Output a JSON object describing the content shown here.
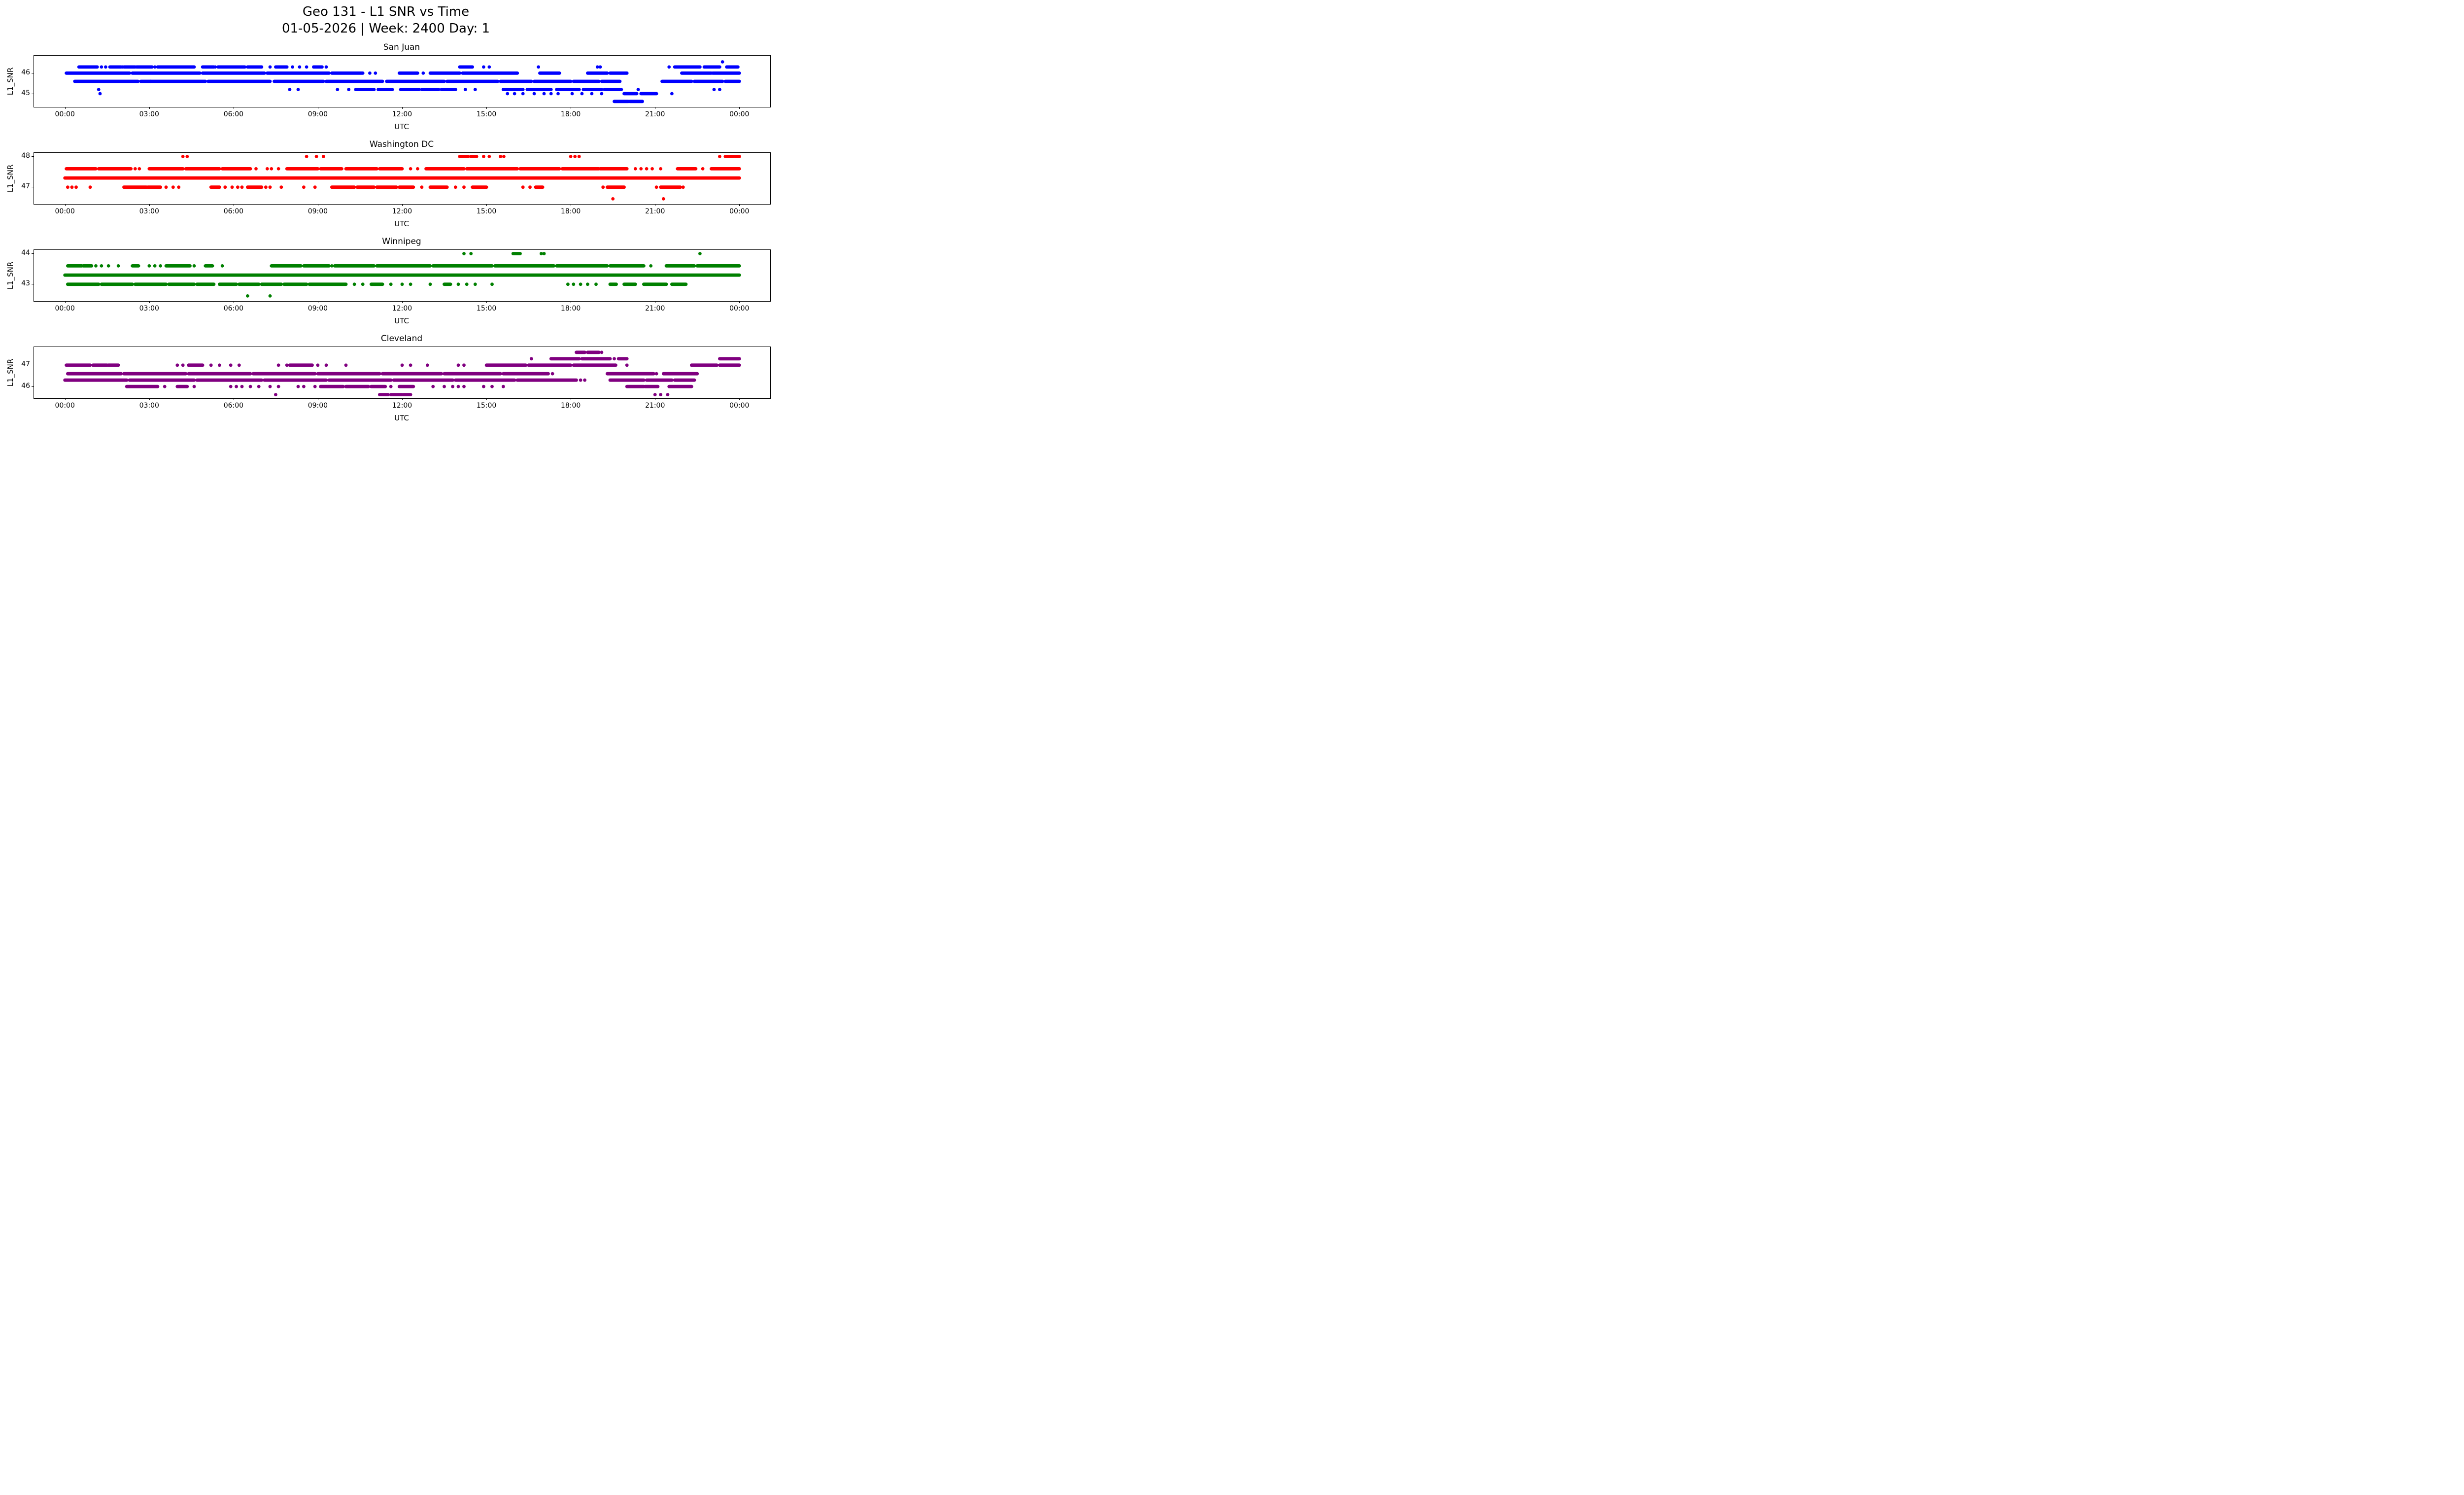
{
  "figure": {
    "title": "Geo 131 - L1 SNR vs Time",
    "subtitle": "01-05-2026 | Week: 2400 Day: 1"
  },
  "axes": {
    "xlabel": "UTC",
    "ylabel": "L1_SNR",
    "x_tick_labels": [
      "00:00",
      "03:00",
      "06:00",
      "09:00",
      "12:00",
      "15:00",
      "18:00",
      "21:00",
      "00:00"
    ],
    "x_tick_hours": [
      0,
      3,
      6,
      9,
      12,
      15,
      18,
      21,
      24
    ],
    "xlim": [
      -1.1,
      25.1
    ]
  },
  "chart_data": [
    {
      "type": "scatter",
      "title": "San Juan",
      "color": "#0000ff",
      "xlabel": "UTC",
      "ylabel": "L1_SNR",
      "ylim": [
        44.35,
        46.85
      ],
      "yticks": [
        45,
        46
      ],
      "bands": [
        {
          "snr": 46.55,
          "solid": [],
          "dots": [
            23.4
          ]
        },
        {
          "snr": 46.3,
          "solid": [
            [
              0.5,
              1.15
            ],
            [
              1.6,
              2.0
            ],
            [
              2.1,
              2.5
            ],
            [
              2.55,
              3.1
            ],
            [
              3.3,
              4.6
            ],
            [
              4.9,
              5.3
            ],
            [
              5.45,
              6.4
            ],
            [
              6.5,
              7.0
            ],
            [
              7.5,
              7.9
            ],
            [
              8.85,
              9.15
            ],
            [
              14.05,
              14.5
            ],
            [
              21.7,
              22.6
            ],
            [
              22.75,
              23.3
            ],
            [
              23.55,
              23.95
            ]
          ],
          "dots": [
            1.3,
            1.45,
            2.05,
            3.2,
            5.35,
            7.3,
            8.1,
            8.35,
            8.6,
            9.3,
            14.9,
            15.1,
            16.85,
            18.95,
            19.05,
            21.5
          ]
        },
        {
          "snr": 46.0,
          "solid": [
            [
              0.05,
              2.3
            ],
            [
              2.4,
              4.8
            ],
            [
              4.9,
              7.1
            ],
            [
              7.2,
              9.4
            ],
            [
              9.5,
              10.6
            ],
            [
              11.9,
              12.55
            ],
            [
              13.0,
              14.05
            ],
            [
              14.15,
              16.1
            ],
            [
              16.9,
              17.6
            ],
            [
              18.6,
              19.3
            ],
            [
              19.4,
              20.0
            ],
            [
              21.95,
              23.0
            ],
            [
              23.05,
              24.0
            ]
          ],
          "dots": [
            10.85,
            11.05,
            12.75
          ]
        },
        {
          "snr": 45.6,
          "solid": [
            [
              0.35,
              2.6
            ],
            [
              2.7,
              5.0
            ],
            [
              5.1,
              7.3
            ],
            [
              7.45,
              9.2
            ],
            [
              9.3,
              11.3
            ],
            [
              11.45,
              13.5
            ],
            [
              13.6,
              15.4
            ],
            [
              15.5,
              16.6
            ],
            [
              16.7,
              18.0
            ],
            [
              18.1,
              19.0
            ],
            [
              19.1,
              19.75
            ],
            [
              21.25,
              22.3
            ],
            [
              22.4,
              23.4
            ],
            [
              23.5,
              24.0
            ]
          ],
          "dots": [
            3.05
          ]
        },
        {
          "snr": 45.2,
          "solid": [
            [
              10.35,
              11.0
            ],
            [
              11.15,
              11.65
            ],
            [
              11.95,
              12.6
            ],
            [
              12.7,
              13.3
            ],
            [
              13.4,
              13.9
            ],
            [
              15.6,
              16.3
            ],
            [
              16.45,
              17.3
            ],
            [
              17.5,
              18.3
            ],
            [
              18.45,
              19.1
            ],
            [
              19.2,
              19.8
            ]
          ],
          "dots": [
            1.2,
            8.0,
            8.3,
            9.7,
            10.1,
            14.25,
            14.6,
            20.4,
            23.1,
            23.3
          ]
        },
        {
          "snr": 45.0,
          "solid": [
            [
              19.9,
              20.35
            ],
            [
              20.5,
              21.05
            ]
          ],
          "dots": [
            1.25,
            15.75,
            16.0,
            16.3,
            16.7,
            17.05,
            17.3,
            17.55,
            18.05,
            18.4,
            18.75,
            19.1,
            21.6
          ]
        },
        {
          "snr": 44.62,
          "solid": [
            [
              19.55,
              20.05
            ],
            [
              20.1,
              20.55
            ]
          ],
          "dots": []
        }
      ]
    },
    {
      "type": "scatter",
      "title": "Washington DC",
      "color": "#ff0000",
      "xlabel": "UTC",
      "ylabel": "L1_SNR",
      "ylim": [
        46.45,
        48.12
      ],
      "yticks": [
        47,
        48
      ],
      "bands": [
        {
          "snr": 48.0,
          "solid": [
            [
              14.05,
              14.35
            ],
            [
              14.45,
              14.65
            ],
            [
              23.5,
              23.8
            ],
            [
              23.85,
              24.0
            ]
          ],
          "dots": [
            4.2,
            4.35,
            8.6,
            8.95,
            9.2,
            14.9,
            15.1,
            15.5,
            15.62,
            18.0,
            18.15,
            18.3,
            23.3
          ]
        },
        {
          "snr": 47.6,
          "solid": [
            [
              0.05,
              1.1
            ],
            [
              1.2,
              2.35
            ],
            [
              3.0,
              4.2
            ],
            [
              4.3,
              5.5
            ],
            [
              5.6,
              6.6
            ],
            [
              7.9,
              9.0
            ],
            [
              9.1,
              9.85
            ],
            [
              10.0,
              11.1
            ],
            [
              11.2,
              12.0
            ],
            [
              12.85,
              14.2
            ],
            [
              14.3,
              16.1
            ],
            [
              16.2,
              17.6
            ],
            [
              17.7,
              19.0
            ],
            [
              19.05,
              20.0
            ],
            [
              21.8,
              22.45
            ],
            [
              23.0,
              24.0
            ]
          ],
          "dots": [
            2.5,
            2.65,
            6.8,
            7.2,
            7.35,
            7.6,
            12.3,
            12.55,
            20.3,
            20.5,
            20.7,
            20.9,
            21.2,
            22.7
          ]
        },
        {
          "snr": 47.3,
          "solid": [
            [
              0.0,
              24.0
            ]
          ],
          "dots": []
        },
        {
          "snr": 47.0,
          "solid": [
            [
              2.1,
              2.9
            ],
            [
              2.95,
              3.4
            ],
            [
              5.2,
              5.5
            ],
            [
              6.5,
              7.0
            ],
            [
              9.5,
              10.3
            ],
            [
              10.4,
              11.0
            ],
            [
              11.1,
              11.8
            ],
            [
              11.9,
              12.4
            ],
            [
              13.0,
              13.6
            ],
            [
              14.5,
              15.0
            ],
            [
              16.75,
              17.0
            ],
            [
              19.3,
              19.9
            ],
            [
              21.2,
              21.9
            ]
          ],
          "dots": [
            0.1,
            0.25,
            0.4,
            0.9,
            3.6,
            3.85,
            4.05,
            5.7,
            5.95,
            6.15,
            6.3,
            7.15,
            7.3,
            7.7,
            8.5,
            8.9,
            12.7,
            13.9,
            14.2,
            16.3,
            16.55,
            19.15,
            21.05,
            22.0
          ]
        },
        {
          "snr": 46.62,
          "solid": [],
          "dots": [
            19.5,
            21.3
          ]
        }
      ]
    },
    {
      "type": "scatter",
      "title": "Winnipeg",
      "color": "#008000",
      "xlabel": "UTC",
      "ylabel": "L1_SNR",
      "ylim": [
        42.45,
        44.12
      ],
      "yticks": [
        43,
        44
      ],
      "bands": [
        {
          "snr": 44.0,
          "solid": [
            [
              15.95,
              16.2
            ]
          ],
          "dots": [
            14.2,
            14.45,
            16.95,
            17.05,
            22.6
          ]
        },
        {
          "snr": 43.6,
          "solid": [
            [
              0.1,
              0.6
            ],
            [
              0.65,
              0.95
            ],
            [
              2.4,
              2.62
            ],
            [
              3.6,
              4.45
            ],
            [
              5.0,
              5.25
            ],
            [
              7.35,
              8.4
            ],
            [
              8.5,
              9.4
            ],
            [
              9.6,
              11.0
            ],
            [
              11.1,
              13.0
            ],
            [
              13.1,
              15.2
            ],
            [
              15.3,
              17.4
            ],
            [
              17.5,
              19.3
            ],
            [
              19.4,
              20.6
            ],
            [
              21.4,
              22.4
            ],
            [
              22.5,
              24.0
            ]
          ],
          "dots": [
            1.1,
            1.3,
            1.55,
            1.9,
            3.0,
            3.2,
            3.4,
            4.6,
            5.6,
            9.5,
            20.85
          ]
        },
        {
          "snr": 43.3,
          "solid": [
            [
              0.0,
              24.0
            ]
          ],
          "dots": []
        },
        {
          "snr": 43.0,
          "solid": [
            [
              0.1,
              1.2
            ],
            [
              1.3,
              2.4
            ],
            [
              2.5,
              3.6
            ],
            [
              3.7,
              4.6
            ],
            [
              4.7,
              5.3
            ],
            [
              5.5,
              6.1
            ],
            [
              6.2,
              6.9
            ],
            [
              7.0,
              7.7
            ],
            [
              7.8,
              8.6
            ],
            [
              8.7,
              10.0
            ],
            [
              10.9,
              11.3
            ],
            [
              13.5,
              13.72
            ],
            [
              19.4,
              19.62
            ],
            [
              19.9,
              20.3
            ],
            [
              20.6,
              21.4
            ],
            [
              21.6,
              22.1
            ]
          ],
          "dots": [
            10.3,
            10.6,
            11.6,
            12.0,
            12.3,
            13.0,
            14.0,
            14.3,
            14.6,
            15.2,
            17.9,
            18.1,
            18.35,
            18.6,
            18.9
          ]
        },
        {
          "snr": 42.62,
          "solid": [],
          "dots": [
            6.5,
            7.3
          ]
        }
      ]
    },
    {
      "type": "scatter",
      "title": "Cleveland",
      "color": "#800080",
      "xlabel": "UTC",
      "ylabel": "L1_SNR",
      "ylim": [
        45.45,
        47.85
      ],
      "yticks": [
        46,
        47
      ],
      "bands": [
        {
          "snr": 47.6,
          "solid": [
            [
              18.2,
              18.5
            ],
            [
              18.6,
              19.0
            ]
          ],
          "dots": [
            19.1
          ]
        },
        {
          "snr": 47.3,
          "solid": [
            [
              17.3,
              18.3
            ],
            [
              18.4,
              19.4
            ],
            [
              19.7,
              20.0
            ],
            [
              23.3,
              24.0
            ]
          ],
          "dots": [
            16.6,
            19.55
          ]
        },
        {
          "snr": 47.0,
          "solid": [
            [
              0.05,
              0.9
            ],
            [
              1.0,
              1.5
            ],
            [
              1.55,
              1.9
            ],
            [
              4.4,
              4.9
            ],
            [
              8.0,
              8.8
            ],
            [
              15.0,
              16.4
            ],
            [
              16.5,
              18.0
            ],
            [
              18.1,
              19.6
            ],
            [
              22.3,
              23.2
            ],
            [
              23.3,
              24.0
            ]
          ],
          "dots": [
            4.0,
            4.2,
            5.2,
            5.5,
            5.9,
            6.2,
            7.6,
            7.9,
            9.0,
            9.3,
            10.0,
            12.0,
            12.3,
            12.9,
            14.0,
            14.2,
            20.0
          ]
        },
        {
          "snr": 46.6,
          "solid": [
            [
              0.1,
              2.0
            ],
            [
              2.1,
              4.3
            ],
            [
              4.4,
              6.6
            ],
            [
              6.7,
              8.9
            ],
            [
              9.0,
              11.2
            ],
            [
              11.3,
              13.4
            ],
            [
              13.5,
              15.5
            ],
            [
              15.6,
              17.2
            ],
            [
              19.3,
              20.95
            ],
            [
              21.3,
              22.5
            ]
          ],
          "dots": [
            17.35,
            21.05
          ]
        },
        {
          "snr": 46.3,
          "solid": [
            [
              0.0,
              2.2
            ],
            [
              2.3,
              4.6
            ],
            [
              4.7,
              7.0
            ],
            [
              7.1,
              9.3
            ],
            [
              9.4,
              11.6
            ],
            [
              11.7,
              13.8
            ],
            [
              13.9,
              16.0
            ],
            [
              16.1,
              18.2
            ],
            [
              19.4,
              20.6
            ],
            [
              20.7,
              21.6
            ],
            [
              21.7,
              22.4
            ]
          ],
          "dots": [
            18.35,
            18.5
          ]
        },
        {
          "snr": 46.0,
          "solid": [
            [
              2.2,
              3.3
            ],
            [
              4.0,
              4.35
            ],
            [
              9.1,
              9.9
            ],
            [
              10.0,
              10.8
            ],
            [
              10.9,
              11.4
            ],
            [
              11.9,
              12.4
            ],
            [
              20.0,
              20.6
            ],
            [
              20.65,
              21.1
            ],
            [
              21.5,
              22.3
            ]
          ],
          "dots": [
            3.55,
            4.6,
            5.9,
            6.1,
            6.3,
            6.6,
            6.9,
            7.3,
            7.6,
            8.3,
            8.5,
            8.9,
            11.6,
            13.1,
            13.5,
            13.8,
            14.0,
            14.2,
            14.9,
            15.2,
            15.6
          ]
        },
        {
          "snr": 45.62,
          "solid": [
            [
              11.2,
              11.5
            ],
            [
              11.6,
              12.0
            ],
            [
              12.05,
              12.3
            ]
          ],
          "dots": [
            7.5,
            21.0,
            21.2,
            21.45
          ]
        }
      ]
    }
  ]
}
